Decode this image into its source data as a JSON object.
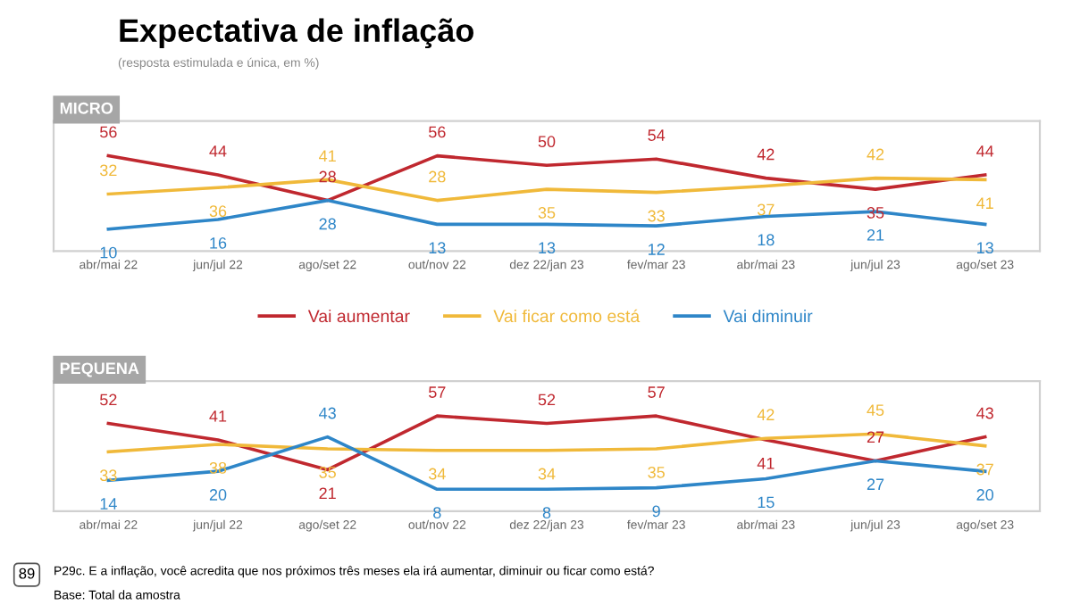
{
  "chart_data": [
    {
      "type": "line",
      "title": "MICRO",
      "subtitle": "(resposta estimulada e única, em %)",
      "annotations": [
        "Expectativa de inflação"
      ],
      "categories": [
        "abr/mai 22",
        "jun/jul 22",
        "ago/set 22",
        "out/nov 22",
        "dez 22/jan 23",
        "fev/mar 23",
        "abr/mai 23",
        "jun/jul 23",
        "ago/set 23"
      ],
      "series": [
        {
          "name": "Vai aumentar",
          "color": "#c0282f",
          "values": [
            56,
            44,
            28,
            56,
            50,
            54,
            42,
            35,
            44
          ]
        },
        {
          "name": "Vai ficar como está",
          "color": "#f0b93a",
          "values": [
            32,
            36,
            41,
            28,
            35,
            33,
            37,
            42,
            41
          ]
        },
        {
          "name": "Vai diminuir",
          "color": "#2e86c8",
          "values": [
            10,
            16,
            28,
            13,
            13,
            12,
            18,
            21,
            13
          ]
        }
      ],
      "data_labels": true,
      "tick_labels": "x",
      "legend": "bottom",
      "grid": false,
      "marker": "none",
      "line_style": "solid"
    },
    {
      "type": "line",
      "title": "PEQUENA",
      "annotations": [
        "89",
        "P29c. E a inflação, você acredita que nos próximos três meses ela irá aumentar, diminuir ou ficar como está?",
        "Base: Total da amostra"
      ],
      "categories": [
        "abr/mai 22",
        "jun/jul 22",
        "ago/set 22",
        "out/nov 22",
        "dez 22/jan 23",
        "fev/mar 23",
        "abr/mai 23",
        "jun/jul 23",
        "ago/set 23"
      ],
      "series": [
        {
          "color": "#c0282f",
          "values": [
            52,
            41,
            21,
            57,
            52,
            57,
            41,
            27,
            43
          ]
        },
        {
          "color": "#f0b93a",
          "values": [
            33,
            38,
            35,
            34,
            34,
            35,
            42,
            45,
            37
          ]
        },
        {
          "color": "#2e86c8",
          "values": [
            14,
            20,
            43,
            8,
            8,
            9,
            15,
            27,
            20
          ]
        }
      ],
      "data_labels": true,
      "tick_labels": "x",
      "legend": false,
      "grid": false,
      "marker": "none",
      "line_style": "solid"
    }
  ]
}
